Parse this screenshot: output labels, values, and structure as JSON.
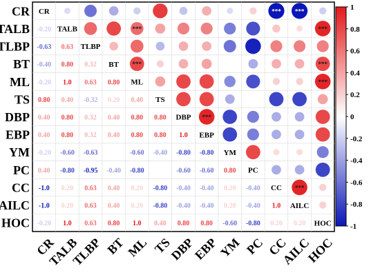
{
  "chart_data": {
    "type": "heatmap",
    "variables": [
      "CR",
      "TALB",
      "TLBP",
      "BT",
      "ML",
      "TS",
      "DBP",
      "EBP",
      "YM",
      "PC",
      "CC",
      "AILC",
      "HOC"
    ],
    "matrix": [
      [
        1.0,
        null,
        null,
        null,
        null,
        null,
        null,
        null,
        null,
        null,
        null,
        null,
        null
      ],
      [
        -0.2,
        1.0,
        null,
        null,
        null,
        null,
        null,
        null,
        null,
        null,
        null,
        null,
        null
      ],
      [
        -0.63,
        0.63,
        1.0,
        null,
        null,
        null,
        null,
        null,
        null,
        null,
        null,
        null,
        null
      ],
      [
        -0.4,
        0.8,
        0.32,
        1.0,
        null,
        null,
        null,
        null,
        null,
        null,
        null,
        null,
        null
      ],
      [
        -0.2,
        1.0,
        0.63,
        0.8,
        1.0,
        null,
        null,
        null,
        null,
        null,
        null,
        null,
        null
      ],
      [
        0.8,
        0.4,
        -0.32,
        0.2,
        0.4,
        1.0,
        null,
        null,
        null,
        null,
        null,
        null,
        null
      ],
      [
        0.4,
        0.8,
        0.32,
        0.4,
        0.8,
        0.8,
        1.0,
        null,
        null,
        null,
        null,
        null,
        null
      ],
      [
        0.4,
        0.8,
        0.32,
        0.4,
        0.8,
        0.8,
        1.0,
        1.0,
        null,
        null,
        null,
        null,
        null
      ],
      [
        -0.2,
        -0.6,
        -0.63,
        0.0,
        -0.6,
        -0.4,
        -0.8,
        -0.8,
        1.0,
        null,
        null,
        null,
        null
      ],
      [
        0.4,
        -0.8,
        -0.95,
        -0.4,
        -0.8,
        0.0,
        -0.6,
        -0.6,
        0.8,
        1.0,
        null,
        null,
        null
      ],
      [
        -1.0,
        0.2,
        0.63,
        0.4,
        0.2,
        -0.8,
        -0.4,
        -0.4,
        0.2,
        -0.4,
        1.0,
        null,
        null
      ],
      [
        -1.0,
        0.2,
        0.63,
        0.4,
        0.2,
        -0.8,
        -0.4,
        -0.4,
        0.2,
        -0.4,
        1.0,
        1.0,
        null
      ],
      [
        -0.2,
        1.0,
        0.63,
        0.8,
        1.0,
        0.4,
        0.8,
        0.8,
        -0.6,
        -0.8,
        0.2,
        0.2,
        1.0
      ]
    ],
    "label_texts": [
      [
        null,
        "",
        "",
        "",
        "",
        "",
        "",
        "",
        "",
        "",
        "",
        "",
        ""
      ],
      [
        "-0.20",
        null,
        "",
        "",
        "",
        "",
        "",
        "",
        "",
        "",
        "",
        "",
        ""
      ],
      [
        "-0.63",
        "0.63",
        null,
        "",
        "",
        "",
        "",
        "",
        "",
        "",
        "",
        "",
        ""
      ],
      [
        "-0.40",
        "0.80",
        "0.32",
        null,
        "",
        "",
        "",
        "",
        "",
        "",
        "",
        "",
        ""
      ],
      [
        "-0.20",
        "1.0",
        "0.63",
        "0.80",
        null,
        "",
        "",
        "",
        "",
        "",
        "",
        "",
        ""
      ],
      [
        "0.80",
        "0.40",
        "-0.32",
        "0.20",
        "0.40",
        null,
        "",
        "",
        "",
        "",
        "",
        "",
        ""
      ],
      [
        "0.40",
        "0.80",
        "0.32",
        "0.40",
        "0.80",
        "0.80",
        null,
        "",
        "",
        "",
        "",
        "",
        ""
      ],
      [
        "0.40",
        "0.80",
        "0.32",
        "0.40",
        "0.80",
        "0.80",
        "1.0",
        null,
        "",
        "",
        "",
        "",
        ""
      ],
      [
        "-0.20",
        "-0.60",
        "-0.63",
        "",
        "-0.60",
        "-0.40",
        "-0.80",
        "-0.80",
        null,
        "",
        "",
        "",
        ""
      ],
      [
        "0.40",
        "-0.80",
        "-0.95",
        "-0.40",
        "-0.80",
        "",
        "-0.60",
        "-0.60",
        "0.80",
        null,
        "",
        "",
        ""
      ],
      [
        "-1.0",
        "0.20",
        "0.63",
        "0.40",
        "0.20",
        "-0.80",
        "-0.40",
        "-0.40",
        "0.20",
        "-0.40",
        null,
        "",
        ""
      ],
      [
        "-1.0",
        "0.20",
        "0.63",
        "0.40",
        "0.20",
        "-0.80",
        "-0.40",
        "-0.40",
        "0.20",
        "-0.40",
        "1.0",
        null,
        ""
      ],
      [
        "-0.20",
        "1.0",
        "0.63",
        "0.80",
        "1.0",
        "0.40",
        "0.80",
        "0.80",
        "-0.60",
        "-0.80",
        "0.20",
        "0.20",
        null
      ]
    ],
    "upper_circles": [
      [
        null,
        -0.15,
        -0.6,
        -0.35,
        -0.2,
        0.85,
        -0.25,
        0.35,
        -0.15,
        0.2,
        -1.0,
        -1.0,
        -0.2
      ],
      [
        null,
        null,
        0.65,
        0.8,
        0.65,
        0.4,
        0.55,
        0.55,
        -0.55,
        -0.75,
        0.25,
        0.15,
        0.95
      ],
      [
        null,
        null,
        null,
        0.3,
        0.65,
        -0.3,
        0.35,
        0.35,
        -0.6,
        -0.95,
        0.55,
        0.55,
        0.55
      ],
      [
        null,
        null,
        null,
        null,
        0.8,
        0.2,
        0.35,
        0.4,
        0.0,
        -0.35,
        0.35,
        0.35,
        0.8
      ],
      [
        null,
        null,
        null,
        null,
        null,
        0.4,
        0.8,
        0.8,
        -0.5,
        -0.75,
        0.2,
        0.2,
        0.95
      ],
      [
        null,
        null,
        null,
        null,
        null,
        null,
        0.8,
        0.8,
        -0.35,
        0.0,
        -0.8,
        -0.8,
        0.4
      ],
      [
        null,
        null,
        null,
        null,
        null,
        null,
        null,
        0.95,
        -0.8,
        -0.55,
        -0.35,
        -0.35,
        0.8
      ],
      [
        null,
        null,
        null,
        null,
        null,
        null,
        null,
        null,
        -0.8,
        -0.55,
        -0.35,
        -0.35,
        0.8
      ],
      [
        null,
        null,
        null,
        null,
        null,
        null,
        null,
        null,
        null,
        0.8,
        0.15,
        0.15,
        -0.55
      ],
      [
        null,
        null,
        null,
        null,
        null,
        null,
        null,
        null,
        null,
        null,
        -0.35,
        -0.35,
        -0.8
      ],
      [
        null,
        null,
        null,
        null,
        null,
        null,
        null,
        null,
        null,
        null,
        null,
        0.95,
        0.2
      ],
      [
        null,
        null,
        null,
        null,
        null,
        null,
        null,
        null,
        null,
        null,
        null,
        null,
        0.2
      ]
    ],
    "significance": [
      [
        "",
        "",
        "",
        "",
        "",
        "",
        "",
        "",
        "",
        "",
        "***",
        "***",
        ""
      ],
      [
        "",
        "",
        "",
        "",
        "***",
        "",
        "",
        "",
        "",
        "",
        "",
        "",
        "***"
      ],
      [
        "",
        "",
        "",
        "",
        "",
        "",
        "",
        "",
        "",
        "",
        "",
        "",
        ""
      ],
      [
        "",
        "",
        "",
        "",
        "***",
        "",
        "",
        "",
        "",
        "",
        "",
        "",
        "***"
      ],
      [
        "",
        "",
        "",
        "",
        "",
        "",
        "",
        "",
        "",
        "",
        "",
        "",
        "***"
      ],
      [
        "",
        "",
        "",
        "",
        "",
        "",
        "",
        "",
        "",
        "",
        "",
        "",
        ""
      ],
      [
        "",
        "",
        "",
        "",
        "",
        "",
        "",
        "***",
        "",
        "",
        "",
        "",
        ""
      ],
      [
        "",
        "",
        "",
        "",
        "",
        "",
        "",
        "",
        "",
        "",
        "",
        "",
        ""
      ],
      [
        "",
        "",
        "",
        "",
        "",
        "",
        "",
        "",
        "",
        "",
        "",
        "",
        ""
      ],
      [
        "",
        "",
        "",
        "",
        "",
        "",
        "",
        "",
        "",
        "",
        "",
        "",
        ""
      ],
      [
        "",
        "",
        "",
        "",
        "",
        "",
        "",
        "",
        "",
        "",
        "",
        "***",
        ""
      ],
      [
        "",
        "",
        "",
        "",
        "",
        "",
        "",
        "",
        "",
        "",
        "",
        "",
        ""
      ],
      [
        "",
        "",
        "",
        "",
        "",
        "",
        "",
        "",
        "",
        "",
        "",
        "",
        ""
      ]
    ],
    "colorbar": {
      "min": -1,
      "max": 1,
      "ticks": [
        "1",
        "0.8",
        "0.6",
        "0.4",
        "0.2",
        "0",
        "-0.2",
        "-0.4",
        "-0.6",
        "-0.8",
        "-1"
      ],
      "colors": {
        "high": "#e31a1c",
        "mid": "#ffffff",
        "low": "#0b16b8"
      }
    },
    "grid": true,
    "legend_position": "right"
  }
}
